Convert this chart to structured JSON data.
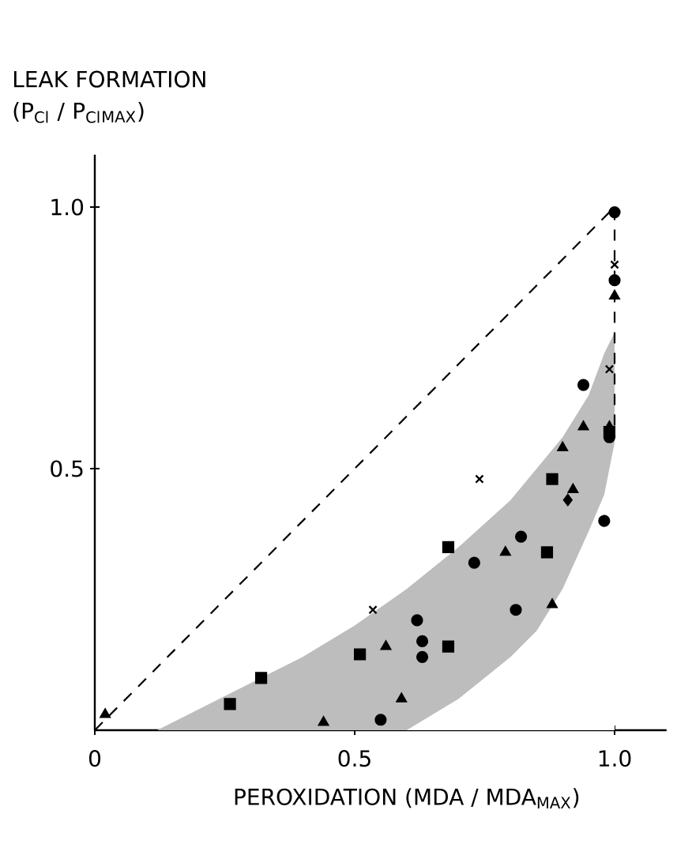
{
  "chart_data": {
    "type": "scatter",
    "xlabel": "PEROXIDATION (MDA / MDA$_{MAX}$)",
    "ylabel": "LEAK FORMATION (P$_{Cl}$ / P$_{Cl}$$_{MAX}$)",
    "xlim": [
      0,
      1.1
    ],
    "ylim": [
      0,
      1.1
    ],
    "xticks": [
      0,
      {
        "value": 0.5,
        "label": "0.5"
      },
      {
        "value": 1,
        "label": "1.0"
      }
    ],
    "yticks": [
      {
        "value": 0.5,
        "label": "0.5"
      },
      {
        "value": 1,
        "label": "1.0"
      }
    ],
    "series": [
      {
        "type": "area",
        "color": "#bdbdbd",
        "x": [
          0.12,
          0.2,
          0.3,
          0.4,
          0.5,
          0.6,
          0.7,
          0.8,
          0.85,
          0.9,
          0.95,
          0.98,
          1.0
        ],
        "values": [
          0,
          0.04,
          0.09,
          0.14,
          0.2,
          0.27,
          0.35,
          0.44,
          0.5,
          0.56,
          0.64,
          0.72,
          0.76
        ]
      },
      {
        "type": "area",
        "color": "#ffffff",
        "x": [
          0.6,
          0.7,
          0.8,
          0.85,
          0.9,
          0.95,
          0.98,
          1.0
        ],
        "values": [
          0,
          0.06,
          0.14,
          0.19,
          0.27,
          0.38,
          0.45,
          0.55
        ]
      },
      {
        "type": "line",
        "line_style": "dashed",
        "marker": "none",
        "color": "#000000",
        "x": [
          0,
          1,
          1
        ],
        "values": [
          0,
          1,
          0.56
        ]
      },
      {
        "marker": "circle",
        "color": "#000000",
        "x": [
          1.0,
          0.99,
          0.98,
          0.81,
          0.63,
          0.94,
          0.82,
          0.73,
          0.62,
          0.63,
          0.55,
          1.0
        ],
        "values": [
          0.99,
          0.56,
          0.4,
          0.23,
          0.14,
          0.66,
          0.37,
          0.32,
          0.21,
          0.17,
          0.02,
          0.86
        ]
      },
      {
        "marker": "square",
        "color": "#000000",
        "x": [
          0.26,
          0.32,
          0.51,
          0.68,
          0.88,
          0.87,
          0.68,
          0.99
        ],
        "values": [
          0.05,
          0.1,
          0.145,
          0.35,
          0.48,
          0.34,
          0.16,
          0.57
        ]
      },
      {
        "marker": "triangle",
        "color": "#000000",
        "x": [
          0.44,
          0.59,
          0.88,
          0.99,
          0.02,
          0.56,
          0.79,
          0.9,
          0.94,
          0.92,
          1.0
        ],
        "values": [
          0.015,
          0.06,
          0.24,
          0.58,
          0.03,
          0.16,
          0.34,
          0.54,
          0.58,
          0.46,
          0.83
        ]
      },
      {
        "marker": "diamond",
        "color": "#000000",
        "x": [
          0.91
        ],
        "values": [
          0.44
        ]
      },
      {
        "marker": "cross",
        "color": "#000000",
        "x": [
          0.535,
          0.74,
          0.99
        ],
        "values": [
          0.23,
          0.48,
          0.69
        ]
      },
      {
        "marker": "cross",
        "color": "#000000",
        "x": [
          1.0
        ],
        "values": [
          0.89
        ]
      }
    ]
  }
}
